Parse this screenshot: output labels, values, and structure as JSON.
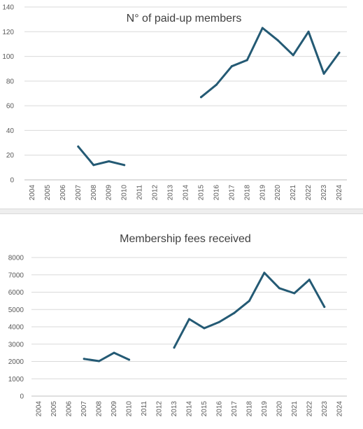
{
  "chart_data": [
    {
      "type": "line",
      "title": "N° of paid-up members",
      "xlabel": "",
      "ylabel": "",
      "categories": [
        "2004",
        "2005",
        "2006",
        "2007",
        "2008",
        "2009",
        "2010",
        "2011",
        "2012",
        "2013",
        "2014",
        "2015",
        "2016",
        "2017",
        "2018",
        "2019",
        "2020",
        "2021",
        "2022",
        "2023",
        "2024"
      ],
      "series": [
        {
          "values": [
            null,
            null,
            null,
            27,
            12,
            15,
            12,
            null,
            null,
            null,
            null,
            67,
            77,
            92,
            97,
            123,
            113,
            101,
            120,
            86,
            103
          ]
        }
      ],
      "yticks": [
        "0",
        "20",
        "40",
        "60",
        "80",
        "100",
        "120",
        "140"
      ],
      "ylim": [
        0,
        140
      ],
      "grid": true,
      "legend": "none",
      "line_color": "#245a74"
    },
    {
      "type": "line",
      "title": "Membership fees received",
      "xlabel": "",
      "ylabel": "",
      "categories": [
        "2004",
        "2005",
        "2006",
        "2007",
        "2008",
        "2009",
        "2010",
        "2011",
        "2012",
        "2013",
        "2014",
        "2015",
        "2016",
        "2017",
        "2018",
        "2019",
        "2020",
        "2021",
        "2022",
        "2023",
        "2024"
      ],
      "series": [
        {
          "values": [
            null,
            null,
            null,
            2150,
            2020,
            2500,
            2100,
            null,
            null,
            2800,
            4450,
            3920,
            4280,
            4800,
            5500,
            7120,
            6230,
            5940,
            6720,
            5150,
            null
          ]
        }
      ],
      "yticks": [
        "0",
        "1000",
        "2000",
        "3000",
        "4000",
        "5000",
        "6000",
        "7000",
        "8000"
      ],
      "ylim": [
        0,
        8000
      ],
      "grid": true,
      "legend": "none",
      "line_color": "#245a74"
    }
  ]
}
